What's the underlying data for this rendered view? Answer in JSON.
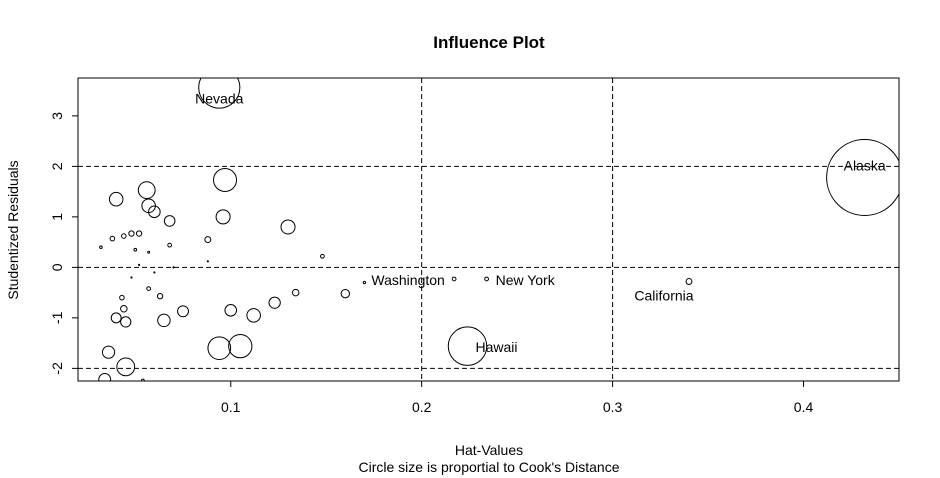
{
  "chart_data": {
    "type": "scatter",
    "title": "Influence Plot",
    "xlabel": "Hat-Values",
    "ylabel": "Studentized Residuals",
    "subtitle": "Circle size is proportial to Cook's Distance",
    "xlim": [
      0.02,
      0.45
    ],
    "ylim": [
      -2.25,
      3.75
    ],
    "xticks": [
      0.1,
      0.2,
      0.3,
      0.4
    ],
    "xtick_labels": [
      "0.1",
      "0.2",
      "0.3",
      "0.4"
    ],
    "yticks": [
      -2,
      -1,
      0,
      1,
      2,
      3
    ],
    "ytick_labels": [
      "-2",
      "-1",
      "0",
      "1",
      "2",
      "3"
    ],
    "reference_lines": {
      "h": [
        -2,
        0,
        2
      ],
      "v": [
        0.2,
        0.3
      ]
    },
    "points": [
      {
        "x": 0.094,
        "y": 3.56,
        "cooks": 0.24,
        "label": "Nevada"
      },
      {
        "x": 0.432,
        "y": 1.78,
        "cooks": 0.82,
        "label": "Alaska"
      },
      {
        "x": 0.34,
        "y": -0.28,
        "cooks": 0.005,
        "label": "California"
      },
      {
        "x": 0.224,
        "y": -1.56,
        "cooks": 0.21,
        "label": "Hawaii"
      },
      {
        "x": 0.234,
        "y": -0.23,
        "cooks": 0.002,
        "label": "New York"
      },
      {
        "x": 0.217,
        "y": -0.23,
        "cooks": 0.002,
        "label": "Washington"
      },
      {
        "x": 0.097,
        "y": 1.73,
        "cooks": 0.075
      },
      {
        "x": 0.056,
        "y": 1.53,
        "cooks": 0.04
      },
      {
        "x": 0.04,
        "y": 1.35,
        "cooks": 0.026
      },
      {
        "x": 0.057,
        "y": 1.22,
        "cooks": 0.026
      },
      {
        "x": 0.06,
        "y": 1.1,
        "cooks": 0.019
      },
      {
        "x": 0.096,
        "y": 1.0,
        "cooks": 0.028
      },
      {
        "x": 0.068,
        "y": 0.92,
        "cooks": 0.016
      },
      {
        "x": 0.13,
        "y": 0.8,
        "cooks": 0.028
      },
      {
        "x": 0.052,
        "y": 0.67,
        "cooks": 0.004
      },
      {
        "x": 0.048,
        "y": 0.67,
        "cooks": 0.004
      },
      {
        "x": 0.044,
        "y": 0.62,
        "cooks": 0.003
      },
      {
        "x": 0.038,
        "y": 0.57,
        "cooks": 0.003
      },
      {
        "x": 0.088,
        "y": 0.55,
        "cooks": 0.005
      },
      {
        "x": 0.068,
        "y": 0.44,
        "cooks": 0.002
      },
      {
        "x": 0.032,
        "y": 0.4,
        "cooks": 0.001
      },
      {
        "x": 0.05,
        "y": 0.35,
        "cooks": 0.001
      },
      {
        "x": 0.057,
        "y": 0.3,
        "cooks": 0.0005
      },
      {
        "x": 0.148,
        "y": 0.22,
        "cooks": 0.002
      },
      {
        "x": 0.088,
        "y": 0.12,
        "cooks": 0.0002
      },
      {
        "x": 0.052,
        "y": 0.05,
        "cooks": 0.0001
      },
      {
        "x": 0.07,
        "y": 0.0,
        "cooks": 0.0001
      },
      {
        "x": 0.06,
        "y": -0.1,
        "cooks": 0.0001
      },
      {
        "x": 0.048,
        "y": -0.2,
        "cooks": 0.0001
      },
      {
        "x": 0.17,
        "y": -0.3,
        "cooks": 0.0008
      },
      {
        "x": 0.057,
        "y": -0.42,
        "cooks": 0.002
      },
      {
        "x": 0.134,
        "y": -0.5,
        "cooks": 0.006
      },
      {
        "x": 0.16,
        "y": -0.52,
        "cooks": 0.01
      },
      {
        "x": 0.063,
        "y": -0.57,
        "cooks": 0.004
      },
      {
        "x": 0.043,
        "y": -0.6,
        "cooks": 0.003
      },
      {
        "x": 0.123,
        "y": -0.7,
        "cooks": 0.018
      },
      {
        "x": 0.044,
        "y": -0.82,
        "cooks": 0.006
      },
      {
        "x": 0.1,
        "y": -0.85,
        "cooks": 0.019
      },
      {
        "x": 0.075,
        "y": -0.87,
        "cooks": 0.017
      },
      {
        "x": 0.112,
        "y": -0.95,
        "cooks": 0.026
      },
      {
        "x": 0.04,
        "y": -1.0,
        "cooks": 0.014
      },
      {
        "x": 0.065,
        "y": -1.05,
        "cooks": 0.022
      },
      {
        "x": 0.045,
        "y": -1.08,
        "cooks": 0.015
      },
      {
        "x": 0.094,
        "y": -1.6,
        "cooks": 0.073
      },
      {
        "x": 0.105,
        "y": -1.56,
        "cooks": 0.077
      },
      {
        "x": 0.036,
        "y": -1.68,
        "cooks": 0.021
      },
      {
        "x": 0.045,
        "y": -1.97,
        "cooks": 0.045
      },
      {
        "x": 0.034,
        "y": -2.22,
        "cooks": 0.02
      },
      {
        "x": 0.054,
        "y": -2.24,
        "cooks": 0.001
      }
    ]
  }
}
